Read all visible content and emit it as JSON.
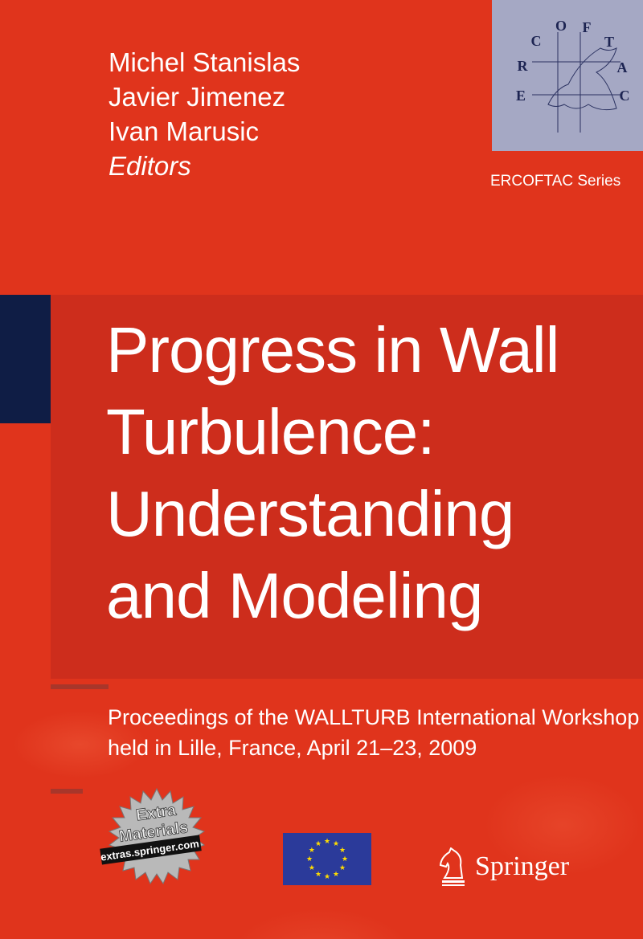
{
  "editors": {
    "names": [
      "Michel Stanislas",
      "Javier Jimenez",
      "Ivan Marusic"
    ],
    "role": "Editors"
  },
  "series": {
    "logo_letters": "ERCOFTAC",
    "label": "ERCOFTAC Series"
  },
  "title": {
    "lines": [
      "Progress in Wall",
      "Turbulence:",
      "Understanding",
      "and Modeling"
    ]
  },
  "subtitle": {
    "lines": [
      "Proceedings of the WALLTURB International Workshop",
      "held in Lille, France, April 21–23, 2009"
    ]
  },
  "badge": {
    "line1": "Extra",
    "line2": "Materials",
    "url": "extras.springer.com"
  },
  "publisher": {
    "name": "Springer",
    "icon": "knight-chess-icon"
  },
  "flag": {
    "icon": "eu-flag-icon"
  },
  "colors": {
    "background": "#e0341c",
    "navy": "#0f1d45",
    "logo_box": "#a5a8c4",
    "eu_blue": "#2b3a9a",
    "eu_star": "#ffdd00"
  }
}
